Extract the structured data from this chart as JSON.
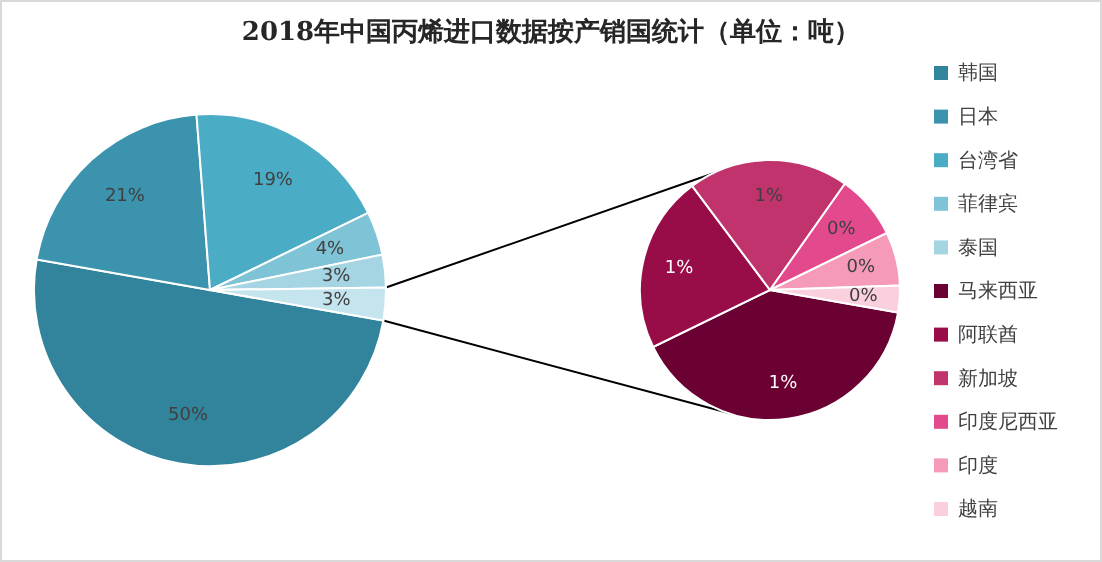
{
  "chart_data": [
    {
      "type": "pie",
      "title": "2018年中国丙烯进口数据按产销国统计（单位：吨）",
      "categories": [
        "韩国",
        "日本",
        "台湾省",
        "菲律宾",
        "泰国",
        null
      ],
      "values": [
        50,
        21,
        19,
        4,
        3,
        3
      ],
      "value_labels": [
        "50%",
        "21%",
        "19%",
        "4%",
        "3%",
        "3%"
      ],
      "colors": [
        "#31849b",
        "#3b93ad",
        "#4bacc6",
        "#7fc3d6",
        "#a5d5e2",
        "#c4e4ee"
      ],
      "legend": "right"
    },
    {
      "type": "pie",
      "categories": [
        "马来西亚",
        "阿联酋",
        "新加坡",
        "印度尼西亚",
        "印度",
        "越南"
      ],
      "values": [
        1.2,
        0.66,
        0.6,
        0.24,
        0.2,
        0.1
      ],
      "value_labels": [
        "1%",
        "1%",
        "1%",
        "0%",
        "0%",
        "0%"
      ],
      "colors": [
        "#6b0032",
        "#980c48",
        "#c0336d",
        "#e24a8d",
        "#f59ab9",
        "#fbd0de"
      ],
      "legend": "right"
    }
  ]
}
